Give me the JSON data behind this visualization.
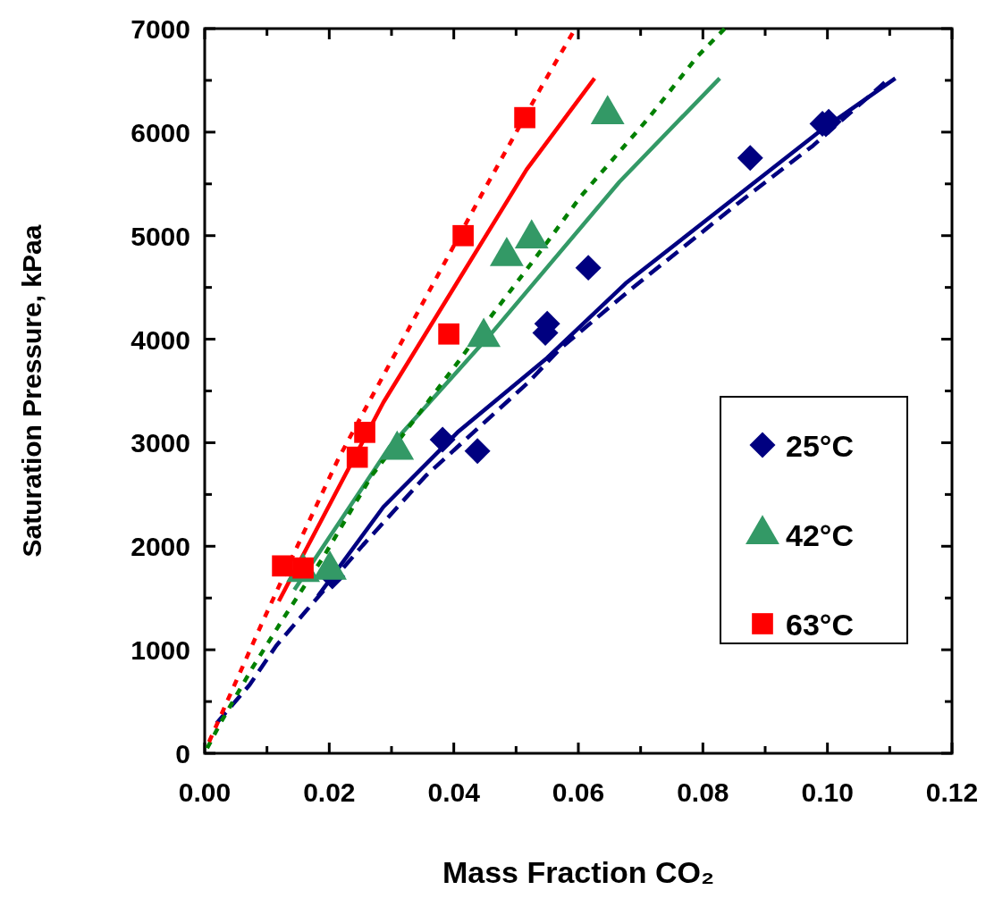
{
  "chart_data": {
    "type": "scatter",
    "xlabel": "Mass Fraction CO₂",
    "ylabel": "Saturation Pressure, kPaa",
    "xlim": [
      0,
      0.12
    ],
    "ylim": [
      0,
      7000
    ],
    "xticks": [
      {
        "value": 0,
        "label": "0.00"
      },
      {
        "value": 0.01,
        "label": null
      },
      {
        "value": 0.02,
        "label": "0.02"
      },
      {
        "value": 0.03,
        "label": null
      },
      {
        "value": 0.04,
        "label": "0.04"
      },
      {
        "value": 0.05,
        "label": null
      },
      {
        "value": 0.06,
        "label": "0.06"
      },
      {
        "value": 0.07,
        "label": null
      },
      {
        "value": 0.08,
        "label": "0.08"
      },
      {
        "value": 0.09,
        "label": null
      },
      {
        "value": 0.1,
        "label": "0.10"
      },
      {
        "value": 0.11,
        "label": null
      },
      {
        "value": 0.12,
        "label": "0.12"
      }
    ],
    "yticks": [
      0,
      {
        "value": 500,
        "label": null
      },
      1000,
      {
        "value": 1500,
        "label": null
      },
      2000,
      {
        "value": 2500,
        "label": null
      },
      3000,
      {
        "value": 3500,
        "label": null
      },
      4000,
      {
        "value": 4500,
        "label": null
      },
      5000,
      {
        "value": 5500,
        "label": null
      },
      6000,
      {
        "value": 6500,
        "label": null
      },
      7000
    ],
    "grid": false,
    "legend": "right",
    "series": [
      {
        "name": "25°C",
        "marker": "diamond",
        "color": "#000080",
        "x": [
          0.0205,
          0.0382,
          0.0438,
          0.0547,
          0.0616,
          0.0876,
          0.055,
          0.0992,
          0.1002
        ],
        "values": [
          1710,
          3030,
          2920,
          4060,
          4690,
          5750,
          4150,
          6080,
          6100
        ]
      },
      {
        "name": "42°C",
        "marker": "triangle",
        "color": "#339966",
        "x": [
          0.0158,
          0.0201,
          0.0309,
          0.0448,
          0.0485,
          0.0525,
          0.0647
        ],
        "values": [
          1750,
          1770,
          2930,
          4020,
          4800,
          4970,
          6170
        ]
      },
      {
        "name": "63°C",
        "marker": "square",
        "color": "#ff0000",
        "x": [
          0.0125,
          0.0158,
          0.0245,
          0.0257,
          0.0392,
          0.0415,
          0.0514
        ],
        "values": [
          1810,
          1790,
          2860,
          3100,
          4050,
          5000,
          6140
        ]
      },
      {
        "type": "line",
        "line_style": "solid",
        "color": "#000080",
        "x": [
          0.0182,
          0.0287,
          0.0406,
          0.055,
          0.0676,
          0.0867,
          0.0988,
          0.1109
        ],
        "values": [
          1520,
          2380,
          3100,
          3820,
          4540,
          5440,
          6010,
          6520
        ]
      },
      {
        "type": "line",
        "line_style": "dashed",
        "color": "#000080",
        "x": [
          0.0019,
          0.0072,
          0.0115,
          0.0162,
          0.0254,
          0.0355,
          0.0521,
          0.0571,
          0.0686,
          0.0858,
          0.0977,
          0.1092
        ],
        "values": [
          290,
          660,
          1040,
          1370,
          2010,
          2680,
          3590,
          3910,
          4490,
          5320,
          5870,
          6480
        ]
      },
      {
        "type": "line",
        "line_style": "solid",
        "color": "#339966",
        "x": [
          0.0144,
          0.0297,
          0.0461,
          0.0666,
          0.0827
        ],
        "values": [
          1580,
          2960,
          4060,
          5520,
          6520
        ]
      },
      {
        "type": "line",
        "line_style": "dotted",
        "color": "#008000",
        "x": [
          0.0004,
          0.0026,
          0.0076,
          0.0126,
          0.0191,
          0.0268,
          0.0344,
          0.0412,
          0.0461,
          0.0543,
          0.0604,
          0.0712,
          0.0791,
          0.0835
        ],
        "values": [
          50,
          300,
          820,
          1300,
          1900,
          2680,
          3280,
          3820,
          4230,
          4880,
          5380,
          6130,
          6730,
          7000
        ]
      },
      {
        "type": "line",
        "line_style": "solid",
        "color": "#ff0000",
        "x": [
          0.0119,
          0.0287,
          0.0517,
          0.0626
        ],
        "values": [
          1470,
          3390,
          5640,
          6520
        ]
      },
      {
        "type": "line",
        "line_style": "dotted",
        "color": "#ff0000",
        "x": [
          0.0007,
          0.0033,
          0.009,
          0.0148,
          0.0215,
          0.0287,
          0.0445,
          0.0541,
          0.0595
        ],
        "values": [
          110,
          460,
          1230,
          1990,
          2850,
          3650,
          5400,
          6440,
          7000
        ]
      }
    ]
  }
}
